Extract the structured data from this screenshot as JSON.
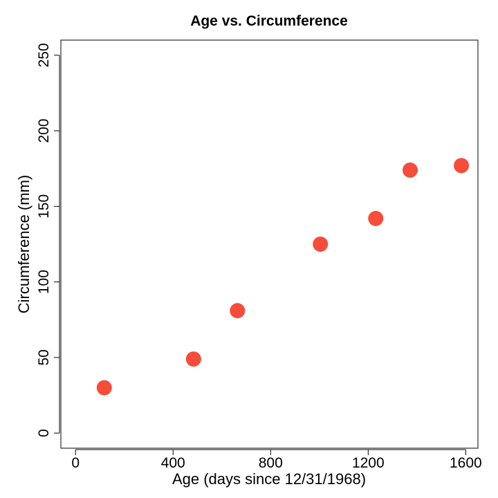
{
  "chart_data": {
    "type": "scatter",
    "title": "Age vs. Circumference",
    "xlabel": "Age (days since 12/31/1968)",
    "ylabel": "Circumference (mm)",
    "xlim": [
      -60,
      1650
    ],
    "ylim": [
      -10,
      260
    ],
    "xticks": [
      0,
      400,
      800,
      1200,
      1600
    ],
    "yticks": [
      0,
      50,
      100,
      150,
      200,
      250
    ],
    "grid": false,
    "legend": "none",
    "marker_color": "#f64c3a",
    "points": [
      {
        "x": 118,
        "y": 30
      },
      {
        "x": 484,
        "y": 49
      },
      {
        "x": 664,
        "y": 81
      },
      {
        "x": 1004,
        "y": 125
      },
      {
        "x": 1231,
        "y": 142
      },
      {
        "x": 1372,
        "y": 174
      },
      {
        "x": 1582,
        "y": 177
      }
    ]
  }
}
